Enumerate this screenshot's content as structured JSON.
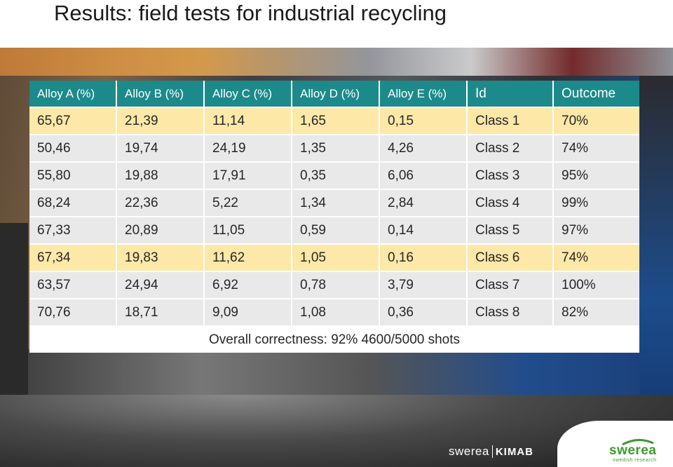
{
  "title": "Results: field tests for industrial recycling",
  "table": {
    "headers": [
      "Alloy A (%)",
      "Alloy B (%)",
      "Alloy C (%)",
      "Alloy D (%)",
      "Alloy E (%)",
      "Id",
      "Outcome"
    ],
    "rows": [
      [
        "65,67",
        "21,39",
        "11,14",
        "1,65",
        "0,15",
        "Class 1",
        "70%"
      ],
      [
        "50,46",
        "19,74",
        "24,19",
        "1,35",
        "4,26",
        "Class 2",
        "74%"
      ],
      [
        "55,80",
        "19,88",
        "17,91",
        "0,35",
        "6,06",
        "Class 3",
        "95%"
      ],
      [
        "68,24",
        "22,36",
        "5,22",
        "1,34",
        "2,84",
        "Class 4",
        "99%"
      ],
      [
        "67,33",
        "20,89",
        "11,05",
        "0,59",
        "0,14",
        "Class 5",
        "97%"
      ],
      [
        "67,34",
        "19,83",
        "11,62",
        "1,05",
        "0,16",
        "Class 6",
        "74%"
      ],
      [
        "63,57",
        "24,94",
        "6,92",
        "0,78",
        "3,79",
        "Class 7",
        "100%"
      ],
      [
        "70,76",
        "18,71",
        "9,09",
        "1,08",
        "0,36",
        "Class 8",
        "82%"
      ]
    ],
    "summary": "Overall correctness: 92% 4600/5000 shots"
  },
  "colors": {
    "header": "#1c8a8a",
    "row_highlight": "#fde8a8",
    "row_normal": "#e9e9ea",
    "brand_green": "#3c9a2e"
  },
  "logos": {
    "kimab_left": "swerea",
    "kimab_right": "KIMAB",
    "swerea_word": "swerea",
    "swerea_tagline": "swedish research"
  },
  "icons": [
    "swerea-logo-icon"
  ]
}
